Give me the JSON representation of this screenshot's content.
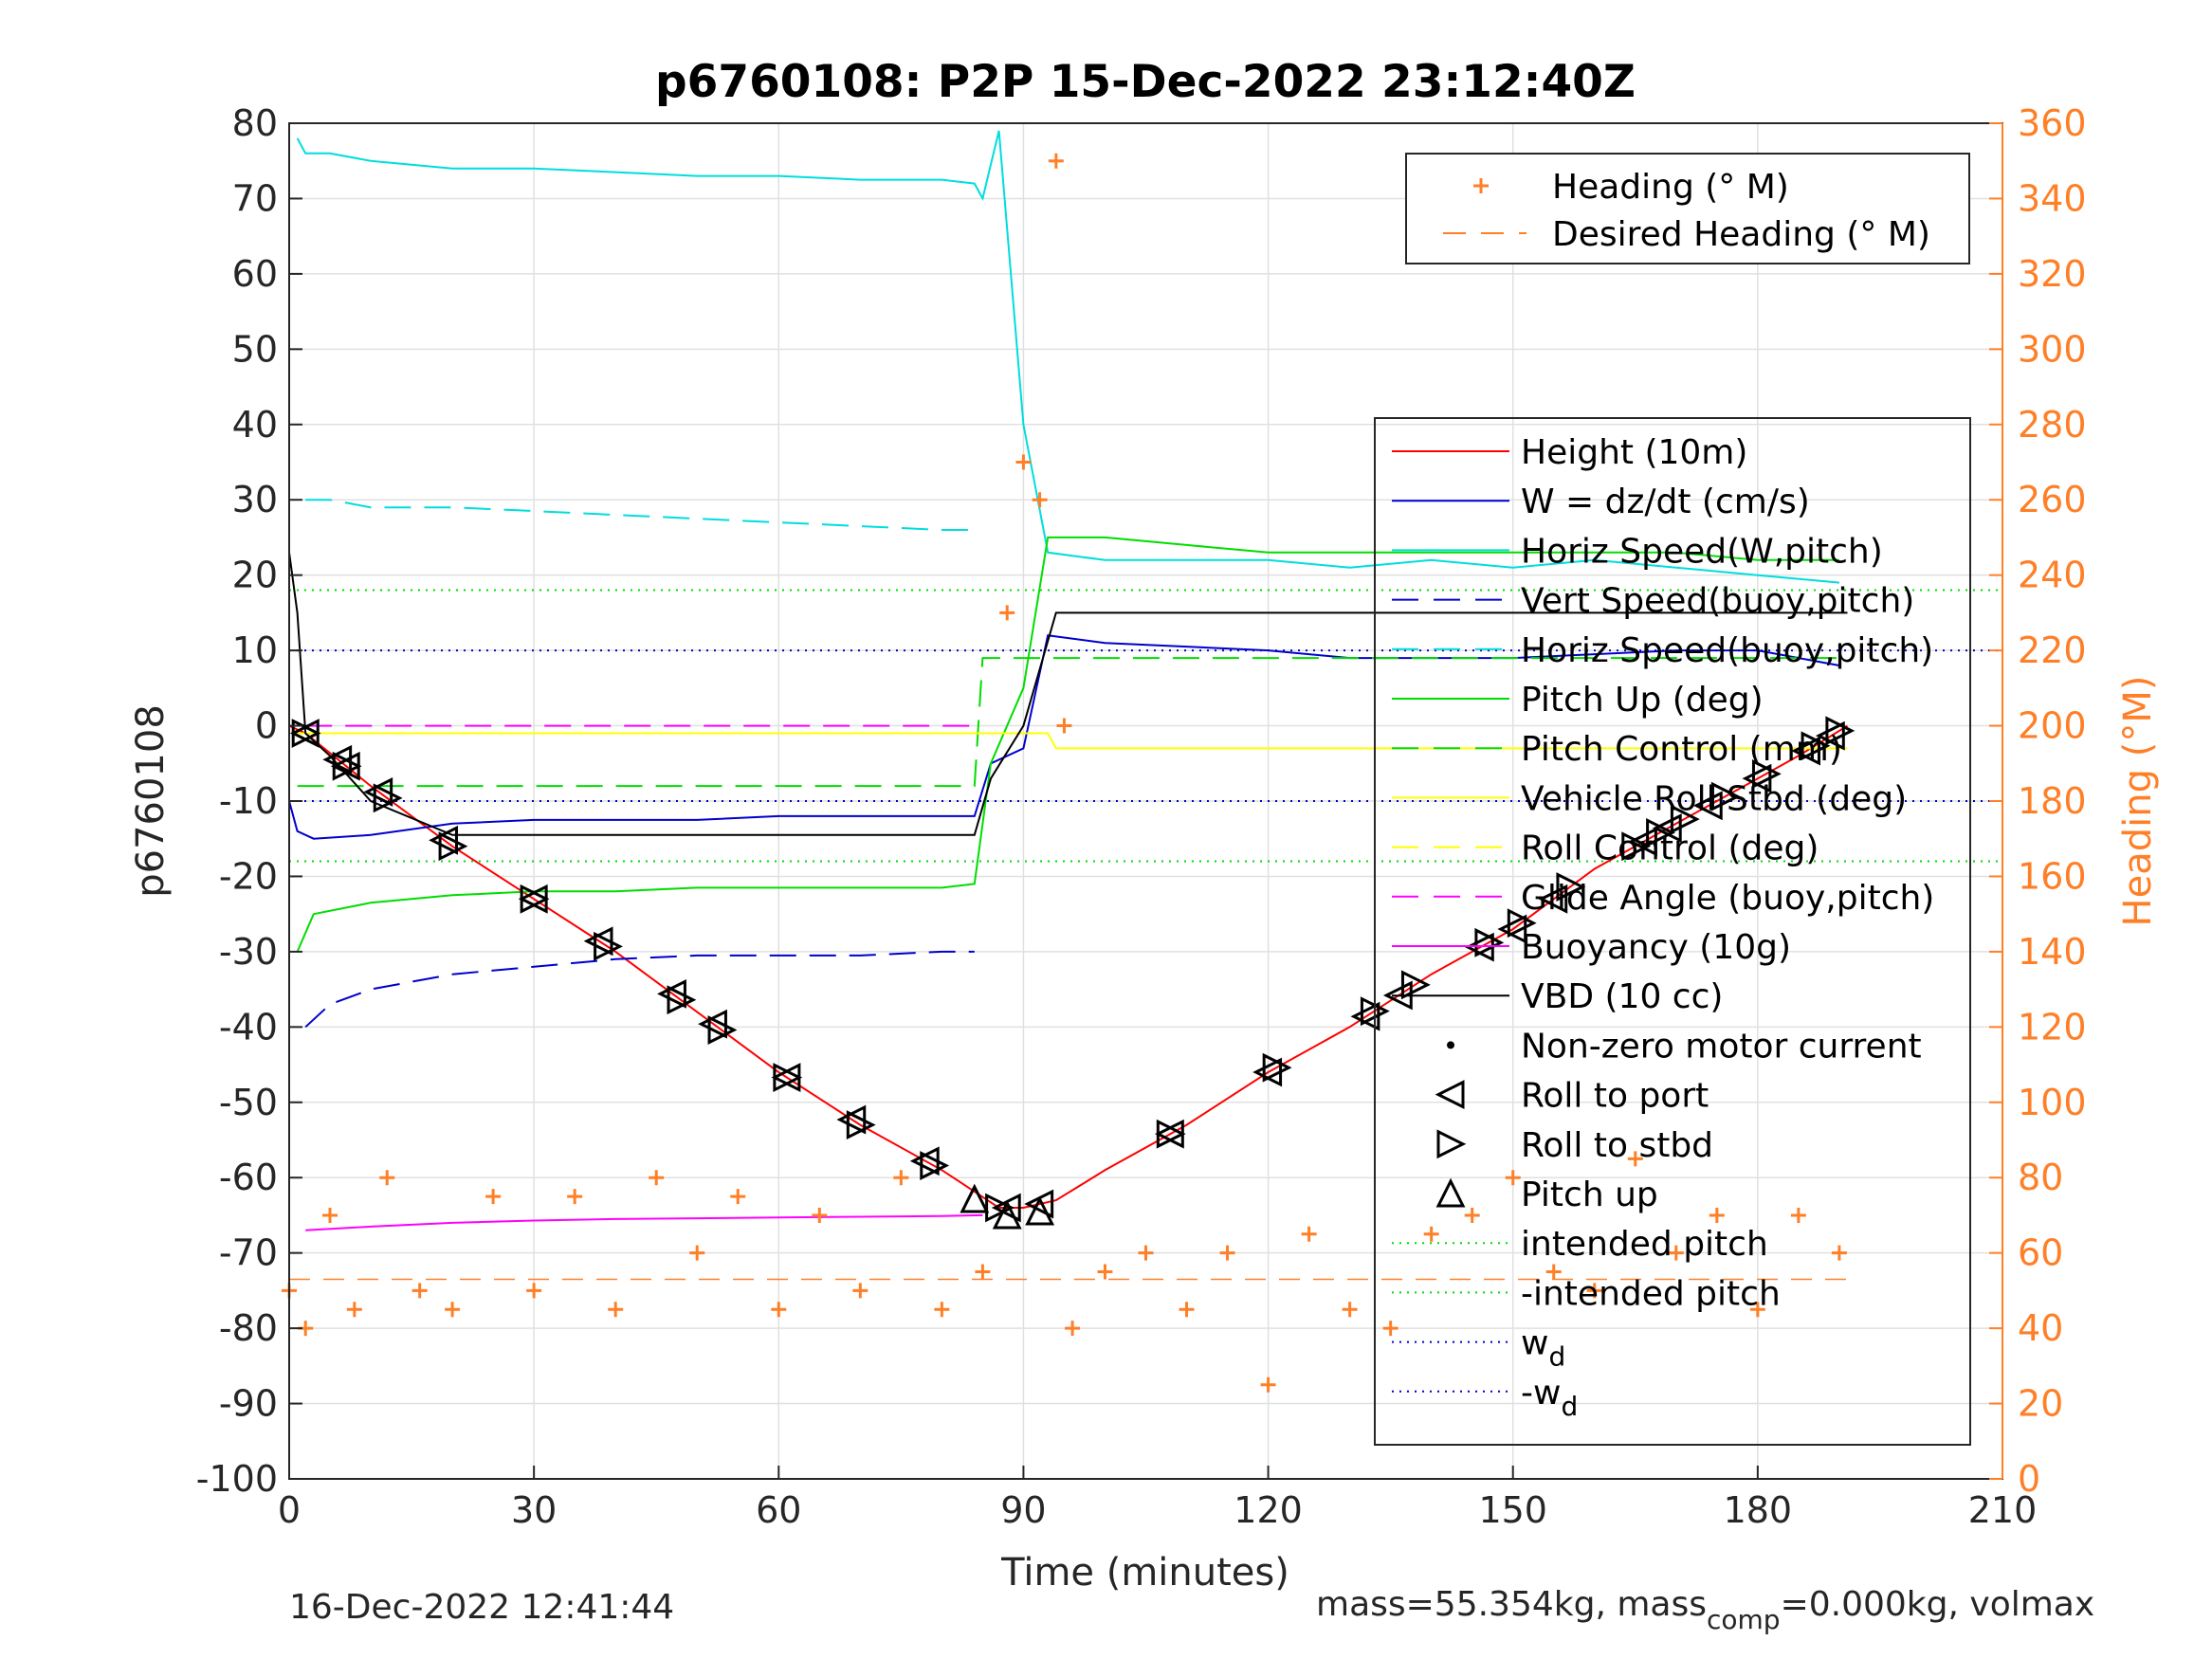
{
  "chart_data": {
    "type": "line",
    "title": "p6760108: P2P 15-Dec-2022 23:12:40Z",
    "xlabel": "Time (minutes)",
    "ylabel_left": "p6760108",
    "ylabel_right": "Heading (°M)",
    "xlim": [
      0,
      210
    ],
    "ylim_left": [
      -100,
      80
    ],
    "ylim_right": [
      0,
      360
    ],
    "xticks": [
      "0",
      "30",
      "60",
      "90",
      "120",
      "150",
      "180",
      "210"
    ],
    "yticks_left": [
      "80",
      "70",
      "60",
      "50",
      "40",
      "30",
      "20",
      "10",
      "0",
      "-10",
      "-20",
      "-30",
      "-40",
      "-50",
      "-60",
      "-70",
      "-80",
      "-90",
      "-100"
    ],
    "yticks_right": [
      "360",
      "340",
      "320",
      "300",
      "280",
      "260",
      "240",
      "220",
      "200",
      "180",
      "160",
      "140",
      "120",
      "100",
      "80",
      "60",
      "40",
      "20",
      "0"
    ],
    "grid": true,
    "legend_heading": [
      {
        "label": "Heading (° M)",
        "color": "#ff7f27",
        "style": "plus"
      },
      {
        "label": "Desired Heading (° M)",
        "color": "#ff7f27",
        "style": "dash"
      }
    ],
    "legend_main": [
      {
        "label": "Height (10m)",
        "color": "#ff0000",
        "style": "line"
      },
      {
        "label": "W = dz/dt (cm/s)",
        "color": "#0000cc",
        "style": "line"
      },
      {
        "label": "Horiz Speed(W,pitch)",
        "color": "#00dddd",
        "style": "line"
      },
      {
        "label": "Vert Speed(buoy,pitch)",
        "color": "#0000cc",
        "style": "dash"
      },
      {
        "label": "Horiz Speed(buoy,pitch)",
        "color": "#00dddd",
        "style": "dash"
      },
      {
        "label": "Pitch Up (deg)",
        "color": "#00dd00",
        "style": "line"
      },
      {
        "label": "Pitch Control (mm)",
        "color": "#00dd00",
        "style": "dash"
      },
      {
        "label": "Vehicle Roll Stbd (deg)",
        "color": "#ffff00",
        "style": "line"
      },
      {
        "label": "Roll Control (deg)",
        "color": "#ffff00",
        "style": "dash"
      },
      {
        "label": "Glide Angle (buoy,pitch)",
        "color": "#ff00ff",
        "style": "dash"
      },
      {
        "label": "Buoyancy (10g)",
        "color": "#ff00ff",
        "style": "line"
      },
      {
        "label": "VBD (10 cc)",
        "color": "#000000",
        "style": "line"
      },
      {
        "label": "Non-zero motor current",
        "color": "#000000",
        "style": "dot"
      },
      {
        "label": "Roll to port",
        "color": "#000000",
        "style": "tri-left"
      },
      {
        "label": "Roll to stbd",
        "color": "#000000",
        "style": "tri-right"
      },
      {
        "label": "Pitch up",
        "color": "#000000",
        "style": "tri-up"
      },
      {
        "label": "intended pitch",
        "color": "#00dd00",
        "style": "dot-line"
      },
      {
        "label": "-intended pitch",
        "color": "#00dd00",
        "style": "dot-line"
      },
      {
        "label": "w",
        "sub": "d",
        "color": "#0000cc",
        "style": "dot-line"
      },
      {
        "label": "-w",
        "sub": "d",
        "color": "#0000cc",
        "style": "dot-line"
      }
    ],
    "reference_lines": {
      "intended_pitch": 18,
      "minus_intended_pitch": -18,
      "w_d": 10,
      "minus_w_d": -10,
      "desired_heading_deg": 53
    },
    "series": [
      {
        "name": "Height (10m)",
        "x": [
          0,
          2,
          10,
          20,
          30,
          40,
          50,
          60,
          70,
          80,
          87,
          90,
          94,
          100,
          110,
          120,
          130,
          140,
          150,
          160,
          170,
          180,
          185,
          191
        ],
        "y": [
          0,
          -1,
          -8,
          -16,
          -23,
          -30,
          -38,
          -46,
          -53,
          -59,
          -64,
          -64,
          -63,
          -59,
          -53,
          -46,
          -40,
          -33,
          -27,
          -19,
          -13,
          -7,
          -4,
          0
        ]
      },
      {
        "name": "W = dz/dt (cm/s)",
        "x": [
          0,
          1,
          3,
          10,
          20,
          30,
          40,
          50,
          60,
          70,
          80,
          84,
          86,
          90,
          93,
          100,
          110,
          120,
          130,
          140,
          150,
          160,
          170,
          180,
          190
        ],
        "y": [
          -10,
          -14,
          -15,
          -14.5,
          -13,
          -12.5,
          -12.5,
          -12.5,
          -12,
          -12,
          -12,
          -12,
          -5,
          -3,
          12,
          11,
          10.5,
          10,
          9,
          9,
          9,
          9.5,
          10,
          10,
          8
        ]
      },
      {
        "name": "Vert Speed(buoy,pitch)",
        "x": [
          2,
          5,
          10,
          20,
          30,
          40,
          50,
          60,
          70,
          80,
          84
        ],
        "y": [
          -40,
          -37,
          -35,
          -33,
          -32,
          -31,
          -30.5,
          -30.5,
          -30.5,
          -30,
          -30
        ]
      },
      {
        "name": "Horiz Speed(W,pitch)",
        "x": [
          1,
          2,
          5,
          10,
          20,
          30,
          40,
          50,
          60,
          70,
          80,
          84,
          85,
          87,
          90,
          93,
          100,
          110,
          120,
          130,
          140,
          150,
          160,
          170,
          180,
          190
        ],
        "y": [
          78,
          76,
          76,
          75,
          74,
          74,
          73.5,
          73,
          73,
          72.5,
          72.5,
          72,
          70,
          79,
          40,
          23,
          22,
          22,
          22,
          21,
          22,
          21,
          22,
          21,
          20,
          19
        ]
      },
      {
        "name": "Horiz Speed(buoy,pitch)",
        "x": [
          2,
          5,
          10,
          20,
          30,
          40,
          50,
          60,
          70,
          80,
          84
        ],
        "y": [
          30,
          30,
          29,
          29,
          28.5,
          28,
          27.5,
          27,
          26.5,
          26,
          26
        ]
      },
      {
        "name": "Pitch Up (deg)",
        "x": [
          1,
          3,
          10,
          20,
          30,
          40,
          50,
          60,
          70,
          80,
          84,
          86,
          90,
          93,
          100,
          110,
          120,
          130,
          140,
          150,
          160,
          170,
          180,
          190
        ],
        "y": [
          -30,
          -25,
          -23.5,
          -22.5,
          -22,
          -22,
          -21.5,
          -21.5,
          -21.5,
          -21.5,
          -21,
          -5,
          5,
          25,
          25,
          24,
          23,
          23,
          23,
          23,
          23,
          23,
          22,
          22
        ]
      },
      {
        "name": "Pitch Control (mm)",
        "x": [
          1,
          84,
          85,
          191
        ],
        "y": [
          -8,
          -8,
          9,
          9
        ]
      },
      {
        "name": "Vehicle Roll Stbd (deg)",
        "x": [
          1,
          84,
          85,
          93,
          94,
          191
        ],
        "y": [
          -1,
          -1,
          -1,
          -1,
          -3,
          -3
        ]
      },
      {
        "name": "Glide Angle (buoy,pitch)",
        "x": [
          2,
          84
        ],
        "y": [
          0,
          0
        ]
      },
      {
        "name": "Buoyancy (10g)",
        "x": [
          2,
          10,
          20,
          30,
          40,
          50,
          60,
          70,
          80,
          85
        ],
        "y": [
          -67,
          -66.5,
          -66,
          -65.7,
          -65.5,
          -65.4,
          -65.3,
          -65.2,
          -65.1,
          -65
        ]
      },
      {
        "name": "VBD (10 cc)",
        "x": [
          0,
          1,
          2,
          5,
          10,
          20,
          40,
          60,
          80,
          84,
          86,
          90,
          94,
          110,
          130,
          150,
          170,
          191
        ],
        "y": [
          23,
          15,
          -1,
          -4,
          -10,
          -14.5,
          -14.5,
          -14.5,
          -14.5,
          -14.5,
          -7,
          0,
          15,
          15,
          15,
          15,
          15,
          15
        ]
      },
      {
        "name": "Heading (° M)",
        "axis": "right",
        "x": [
          0,
          2,
          5,
          8,
          12,
          16,
          20,
          25,
          30,
          35,
          40,
          45,
          50,
          55,
          60,
          65,
          70,
          75,
          80,
          85,
          88,
          90,
          92,
          94,
          95,
          96,
          100,
          105,
          110,
          115,
          120,
          125,
          130,
          135,
          140,
          145,
          150,
          155,
          160,
          165,
          170,
          175,
          180,
          185,
          190
        ],
        "y": [
          50,
          40,
          70,
          45,
          80,
          50,
          45,
          75,
          50,
          75,
          45,
          80,
          60,
          75,
          45,
          70,
          50,
          80,
          45,
          55,
          230,
          270,
          260,
          350,
          200,
          40,
          55,
          60,
          45,
          60,
          25,
          65,
          45,
          40,
          65,
          70,
          80,
          55,
          50,
          85,
          60,
          70,
          45,
          70,
          60
        ]
      }
    ],
    "markers": {
      "roll_to_port_x": [
        2,
        6,
        7,
        11,
        19,
        30,
        38,
        47,
        52,
        61,
        69,
        78,
        88,
        92,
        108,
        120,
        132,
        136,
        146,
        150,
        155,
        166,
        169,
        174,
        180,
        186,
        189
      ],
      "roll_to_stbd_x": [
        2,
        7,
        12,
        20,
        30,
        39,
        48,
        53,
        61,
        70,
        79,
        87,
        108,
        121,
        133,
        138,
        147,
        151,
        157,
        165,
        168,
        171,
        176,
        181,
        187,
        190
      ],
      "pitch_up_x": [
        84,
        88,
        92
      ]
    }
  },
  "footer": {
    "timestamp": "16-Dec-2022 12:41:44",
    "mass_text_1": "mass=55.354kg, mass",
    "mass_sub": "comp",
    "mass_text_2": "=0.000kg, volmax"
  }
}
